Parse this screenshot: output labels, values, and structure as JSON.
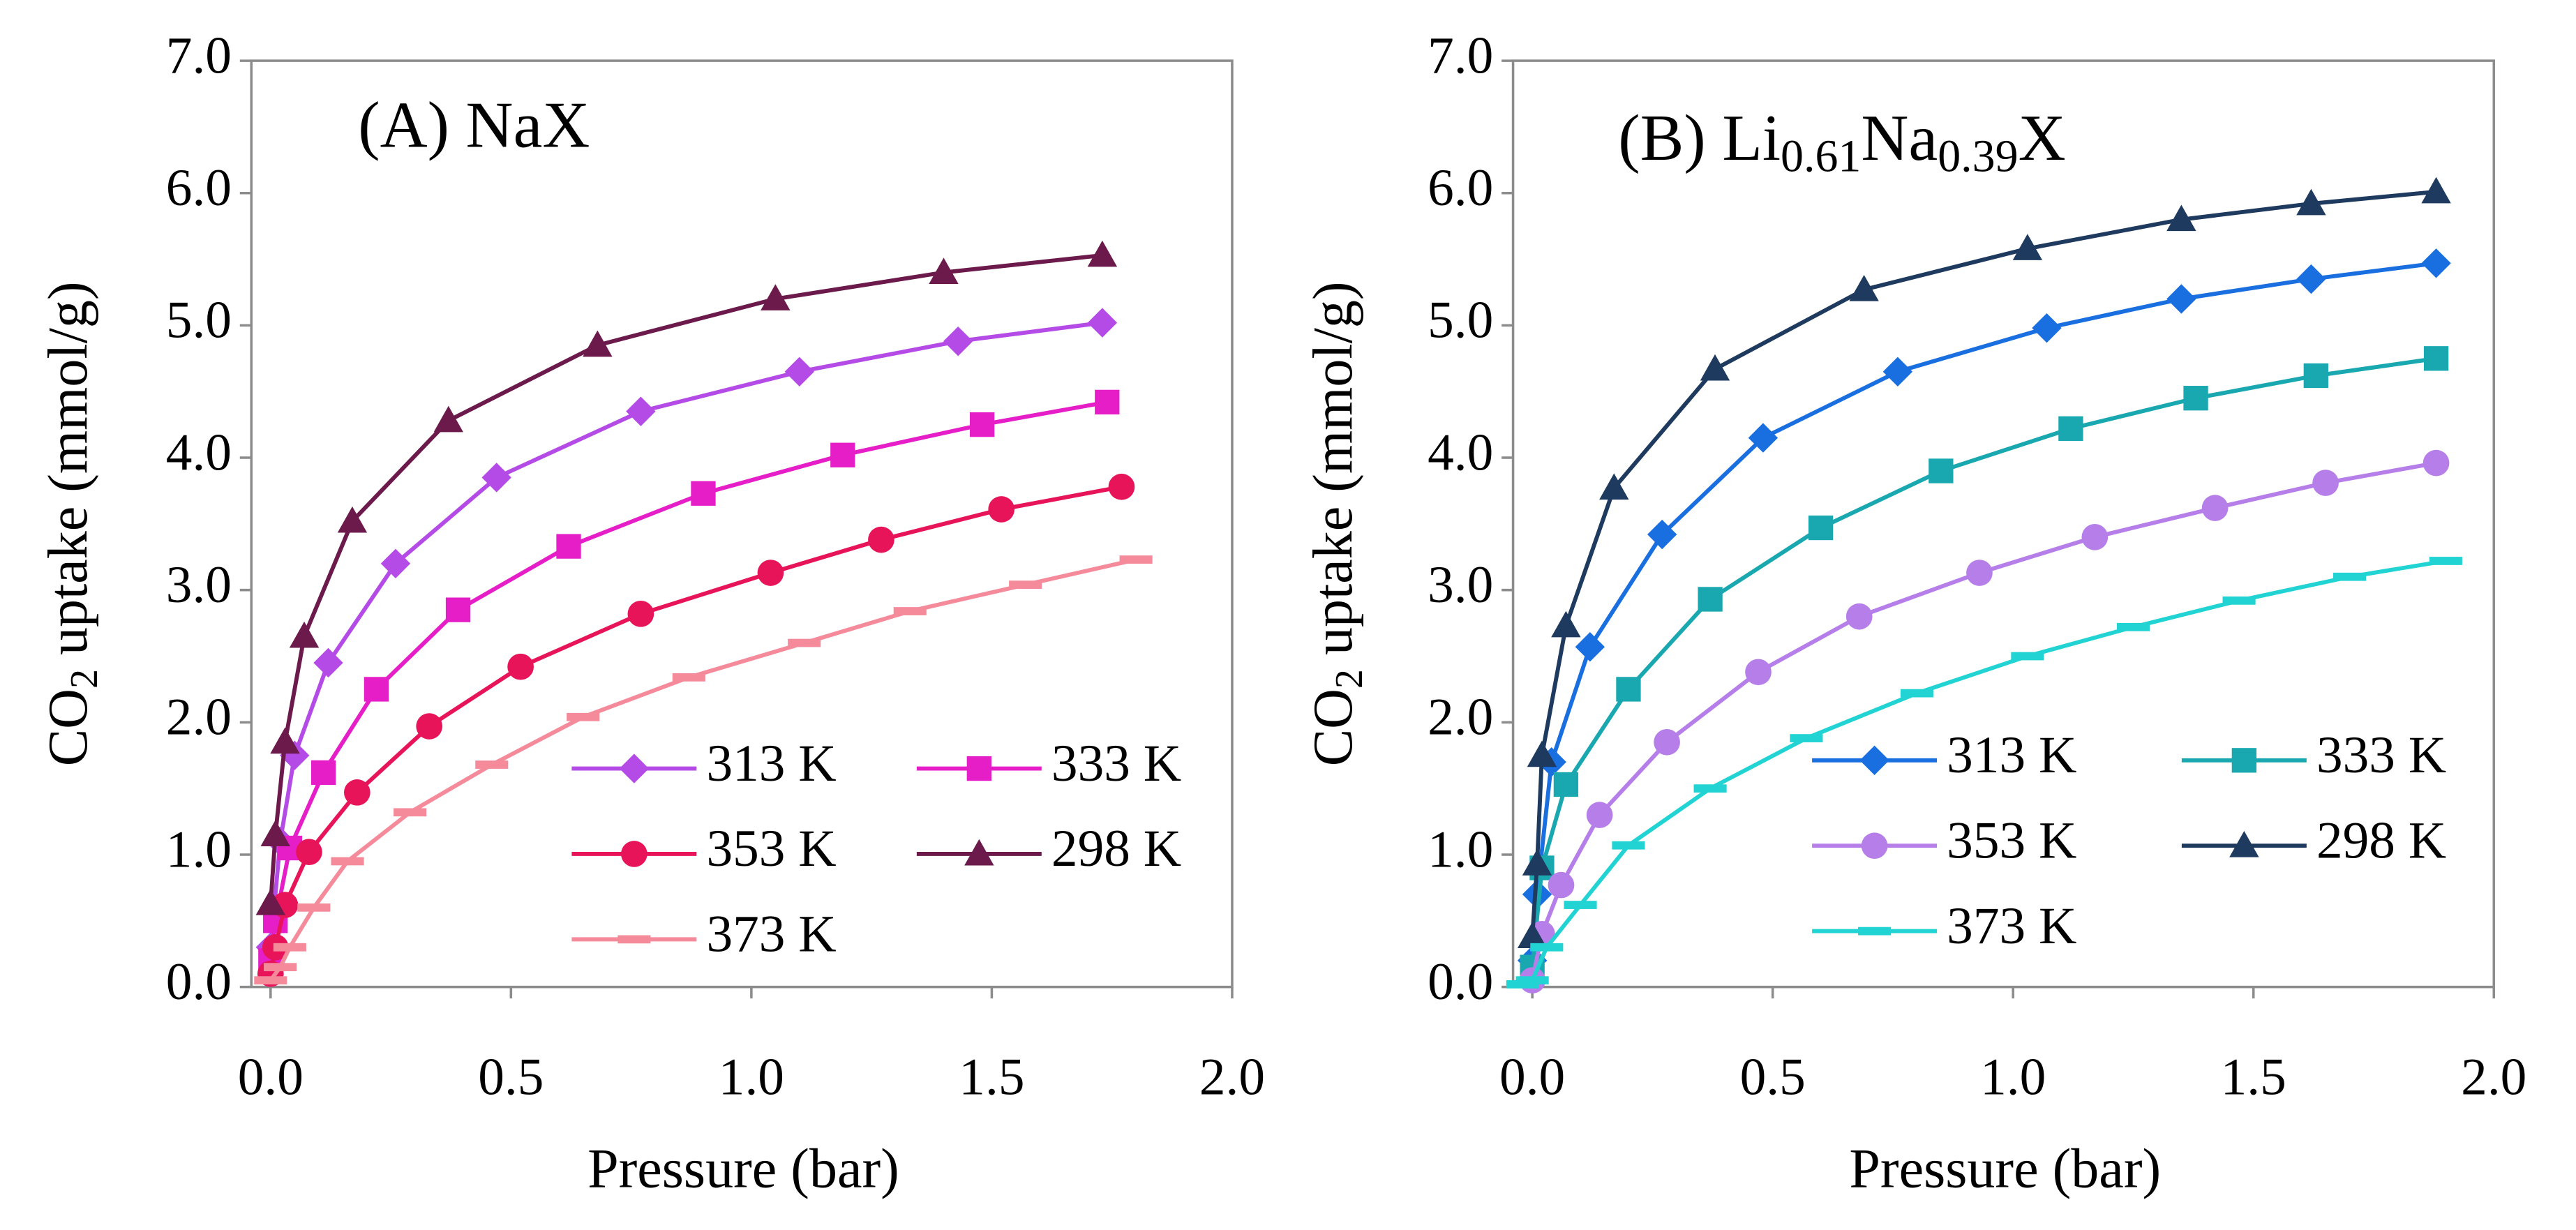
{
  "chart_data": [
    {
      "type": "line",
      "title": [
        {
          "text": "(A) NaX"
        }
      ],
      "ylabel": [
        {
          "text": "CO"
        },
        {
          "text": "2",
          "sub": true
        },
        {
          "text": " uptake (mmol/g)"
        }
      ],
      "xlabel": "Pressure (bar)",
      "xlim": [
        -0.04,
        2.0
      ],
      "ylim": [
        0,
        7.0
      ],
      "xticks": [
        {
          "value": 0,
          "label": "0.0"
        },
        0.5,
        {
          "value": 1,
          "label": "1.0"
        },
        1.5,
        {
          "value": 2,
          "label": "2.0"
        }
      ],
      "yticks": [
        {
          "value": 0,
          "label": "0.0"
        },
        {
          "value": 1,
          "label": "1.0"
        },
        {
          "value": 2,
          "label": "2.0"
        },
        {
          "value": 3,
          "label": "3.0"
        },
        {
          "value": 4,
          "label": "4.0"
        },
        {
          "value": 5,
          "label": "5.0"
        },
        {
          "value": 6,
          "label": "6.0"
        },
        {
          "value": 7,
          "label": "7.0"
        }
      ],
      "grid": false,
      "legend": "lower right",
      "series": [
        {
          "name": "313 K",
          "color": "#b44be6",
          "marker": "diamond",
          "x": [
            0.0,
            0.02,
            0.05,
            0.12,
            0.26,
            0.47,
            0.77,
            1.1,
            1.43,
            1.73
          ],
          "values": [
            0.3,
            1.1,
            1.75,
            2.45,
            3.2,
            3.85,
            4.35,
            4.65,
            4.88,
            5.02
          ]
        },
        {
          "name": "333 K",
          "color": "#e61ec8",
          "marker": "square",
          "x": [
            0.0,
            0.01,
            0.04,
            0.11,
            0.22,
            0.39,
            0.62,
            0.9,
            1.19,
            1.48,
            1.74
          ],
          "values": [
            0.2,
            0.5,
            1.05,
            1.62,
            2.25,
            2.85,
            3.33,
            3.73,
            4.02,
            4.25,
            4.42
          ]
        },
        {
          "name": "353 K",
          "color": "#e8145a",
          "marker": "circle",
          "x": [
            0.0,
            0.01,
            0.03,
            0.08,
            0.18,
            0.33,
            0.52,
            0.77,
            1.04,
            1.27,
            1.52,
            1.77
          ],
          "values": [
            0.1,
            0.3,
            0.62,
            1.02,
            1.47,
            1.97,
            2.42,
            2.82,
            3.13,
            3.38,
            3.61,
            3.78
          ]
        },
        {
          "name": "298 K",
          "color": "#6b1a4b",
          "marker": "triangle",
          "x": [
            0.0,
            0.01,
            0.03,
            0.07,
            0.17,
            0.37,
            0.68,
            1.05,
            1.4,
            1.73
          ],
          "values": [
            0.63,
            1.15,
            1.85,
            2.65,
            3.52,
            4.28,
            4.85,
            5.2,
            5.4,
            5.53
          ]
        },
        {
          "name": "373 K",
          "color": "#f58a9b",
          "marker": "dash",
          "x": [
            0.0,
            0.02,
            0.04,
            0.09,
            0.16,
            0.29,
            0.46,
            0.65,
            0.87,
            1.11,
            1.33,
            1.57,
            1.8
          ],
          "values": [
            0.05,
            0.15,
            0.3,
            0.6,
            0.95,
            1.32,
            1.68,
            2.04,
            2.34,
            2.6,
            2.84,
            3.04,
            3.23
          ]
        }
      ]
    },
    {
      "type": "line",
      "title": [
        {
          "text": "(B) Li"
        },
        {
          "text": "0.61",
          "sub": true
        },
        {
          "text": "Na"
        },
        {
          "text": "0.39",
          "sub": true
        },
        {
          "text": "X"
        }
      ],
      "ylabel": [
        {
          "text": "CO"
        },
        {
          "text": "2",
          "sub": true
        },
        {
          "text": " uptake (mmol/g)"
        }
      ],
      "xlabel": "Pressure (bar)",
      "xlim": [
        -0.04,
        2.0
      ],
      "ylim": [
        0,
        7.0
      ],
      "xticks": [
        {
          "value": 0,
          "label": "0.0"
        },
        0.5,
        {
          "value": 1,
          "label": "1.0"
        },
        1.5,
        {
          "value": 2,
          "label": "2.0"
        }
      ],
      "yticks": [
        {
          "value": 0,
          "label": "0.0"
        },
        {
          "value": 1,
          "label": "1.0"
        },
        {
          "value": 2,
          "label": "2.0"
        },
        {
          "value": 3,
          "label": "3.0"
        },
        {
          "value": 4,
          "label": "4.0"
        },
        {
          "value": 5,
          "label": "5.0"
        },
        {
          "value": 6,
          "label": "6.0"
        },
        {
          "value": 7,
          "label": "7.0"
        }
      ],
      "grid": false,
      "legend": "lower right",
      "series": [
        {
          "name": "313 K",
          "color": "#1a6fe0",
          "marker": "diamond",
          "x": [
            0.0,
            0.01,
            0.04,
            0.12,
            0.27,
            0.48,
            0.76,
            1.07,
            1.35,
            1.62,
            1.88
          ],
          "values": [
            0.2,
            0.7,
            1.7,
            2.57,
            3.42,
            4.15,
            4.65,
            4.98,
            5.2,
            5.35,
            5.47
          ]
        },
        {
          "name": "333 K",
          "color": "#1aa8b0",
          "marker": "square",
          "x": [
            0.0,
            0.02,
            0.07,
            0.2,
            0.37,
            0.6,
            0.85,
            1.12,
            1.38,
            1.63,
            1.88
          ],
          "values": [
            0.15,
            0.9,
            1.53,
            2.25,
            2.93,
            3.47,
            3.9,
            4.22,
            4.45,
            4.62,
            4.75
          ]
        },
        {
          "name": "353 K",
          "color": "#b57ee8",
          "marker": "circle",
          "x": [
            0.0,
            0.02,
            0.06,
            0.14,
            0.28,
            0.47,
            0.68,
            0.93,
            1.17,
            1.42,
            1.65,
            1.88
          ],
          "values": [
            0.05,
            0.4,
            0.77,
            1.3,
            1.85,
            2.38,
            2.8,
            3.13,
            3.4,
            3.62,
            3.81,
            3.96
          ]
        },
        {
          "name": "298 K",
          "color": "#1f3a5f",
          "marker": "triangle",
          "x": [
            0.0,
            0.01,
            0.02,
            0.07,
            0.17,
            0.38,
            0.69,
            1.03,
            1.35,
            1.62,
            1.88
          ],
          "values": [
            0.38,
            0.93,
            1.75,
            2.73,
            3.77,
            4.67,
            5.27,
            5.58,
            5.8,
            5.92,
            6.01
          ]
        },
        {
          "name": "373 K",
          "color": "#22d3d3",
          "marker": "dash",
          "x": [
            -0.02,
            0.0,
            0.03,
            0.1,
            0.2,
            0.37,
            0.57,
            0.8,
            1.03,
            1.25,
            1.47,
            1.7,
            1.9
          ],
          "values": [
            0.02,
            0.05,
            0.3,
            0.62,
            1.07,
            1.5,
            1.88,
            2.22,
            2.5,
            2.72,
            2.92,
            3.1,
            3.22
          ]
        }
      ]
    }
  ]
}
